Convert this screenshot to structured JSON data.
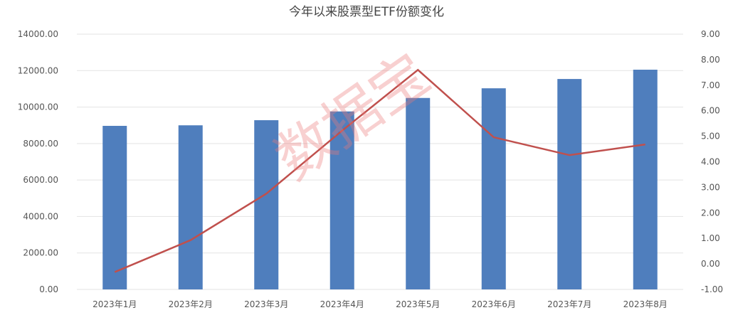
{
  "chart_data": {
    "type": "bar+line",
    "title": "今年以来股票型ETF份额变化",
    "categories": [
      "2023年1月",
      "2023年2月",
      "2023年3月",
      "2023年4月",
      "2023年5月",
      "2023年6月",
      "2023年7月",
      "2023年8月"
    ],
    "series": [
      {
        "type": "bar",
        "axis": "left",
        "color": "#4f7ebd",
        "values": [
          8970,
          9000,
          9280,
          9760,
          10500,
          11030,
          11540,
          12050
        ]
      },
      {
        "type": "line",
        "axis": "right",
        "color": "#c0504d",
        "values": [
          -0.32,
          0.93,
          2.75,
          5.22,
          7.6,
          4.96,
          4.26,
          4.68
        ]
      }
    ],
    "left_axis": {
      "ylim": [
        0,
        14000
      ],
      "ticks": [
        "0.00",
        "2000.00",
        "4000.00",
        "6000.00",
        "8000.00",
        "10000.00",
        "12000.00",
        "14000.00"
      ]
    },
    "right_axis": {
      "ylim": [
        -1,
        9
      ],
      "ticks": [
        "-1.00",
        "0.00",
        "1.00",
        "2.00",
        "3.00",
        "4.00",
        "5.00",
        "6.00",
        "7.00",
        "8.00",
        "9.00"
      ]
    },
    "grid": true,
    "watermark": "数据宝"
  }
}
